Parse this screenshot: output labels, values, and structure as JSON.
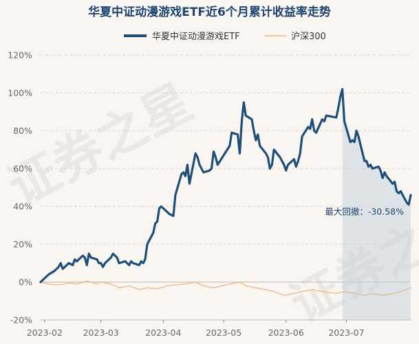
{
  "chart_data": {
    "type": "line",
    "title": "华夏中证动漫游戏ETF近6个月累计收益率走势",
    "xlabel": "",
    "ylabel": "",
    "ylim": [
      -20,
      120
    ],
    "yticks": [
      "120%",
      "100%",
      "80%",
      "60%",
      "40%",
      "20%",
      "0%",
      "-20%"
    ],
    "yticks_values": [
      120,
      100,
      80,
      60,
      40,
      20,
      0,
      -20
    ],
    "x_range": [
      "2023-01-30",
      "2023-07-31"
    ],
    "xticks": [
      {
        "label": "2023-02",
        "date": "2023-02-01"
      },
      {
        "label": "2023-03",
        "date": "2023-03-01"
      },
      {
        "label": "2023-04",
        "date": "2023-04-01"
      },
      {
        "label": "2023-05",
        "date": "2023-05-01"
      },
      {
        "label": "2023-06",
        "date": "2023-06-01"
      },
      {
        "label": "2023-07",
        "date": "2023-07-01"
      }
    ],
    "grid": true,
    "legend_position": "top-center",
    "series": [
      {
        "name": "华夏中证动漫游戏ETF",
        "color": "#1f4e79",
        "points": [
          [
            "2023-01-30",
            0
          ],
          [
            "2023-02-01",
            2
          ],
          [
            "2023-02-03",
            4
          ],
          [
            "2023-02-06",
            6
          ],
          [
            "2023-02-08",
            8
          ],
          [
            "2023-02-09",
            10
          ],
          [
            "2023-02-10",
            7
          ],
          [
            "2023-02-13",
            10
          ],
          [
            "2023-02-15",
            9
          ],
          [
            "2023-02-16",
            12
          ],
          [
            "2023-02-17",
            11
          ],
          [
            "2023-02-20",
            14
          ],
          [
            "2023-02-21",
            13
          ],
          [
            "2023-02-22",
            9
          ],
          [
            "2023-02-23",
            15
          ],
          [
            "2023-02-24",
            13
          ],
          [
            "2023-02-27",
            12
          ],
          [
            "2023-02-28",
            10
          ],
          [
            "2023-03-01",
            10
          ],
          [
            "2023-03-02",
            8
          ],
          [
            "2023-03-03",
            10
          ],
          [
            "2023-03-06",
            13
          ],
          [
            "2023-03-07",
            15
          ],
          [
            "2023-03-08",
            14
          ],
          [
            "2023-03-09",
            13
          ],
          [
            "2023-03-10",
            10
          ],
          [
            "2023-03-13",
            11
          ],
          [
            "2023-03-14",
            10
          ],
          [
            "2023-03-15",
            9
          ],
          [
            "2023-03-16",
            11
          ],
          [
            "2023-03-17",
            10
          ],
          [
            "2023-03-20",
            9
          ],
          [
            "2023-03-21",
            11
          ],
          [
            "2023-03-22",
            10
          ],
          [
            "2023-03-23",
            12
          ],
          [
            "2023-03-24",
            20
          ],
          [
            "2023-03-27",
            26
          ],
          [
            "2023-03-28",
            31
          ],
          [
            "2023-03-29",
            32
          ],
          [
            "2023-03-30",
            39
          ],
          [
            "2023-03-31",
            40
          ],
          [
            "2023-04-03",
            37
          ],
          [
            "2023-04-04",
            36
          ],
          [
            "2023-04-06",
            35
          ],
          [
            "2023-04-07",
            46
          ],
          [
            "2023-04-10",
            57
          ],
          [
            "2023-04-11",
            58
          ],
          [
            "2023-04-12",
            56
          ],
          [
            "2023-04-13",
            62
          ],
          [
            "2023-04-14",
            52
          ],
          [
            "2023-04-17",
            68
          ],
          [
            "2023-04-18",
            66
          ],
          [
            "2023-04-19",
            62
          ],
          [
            "2023-04-20",
            60
          ],
          [
            "2023-04-21",
            58
          ],
          [
            "2023-04-24",
            59
          ],
          [
            "2023-04-25",
            60
          ],
          [
            "2023-04-26",
            69
          ],
          [
            "2023-04-27",
            66
          ],
          [
            "2023-04-28",
            62
          ],
          [
            "2023-05-04",
            72
          ],
          [
            "2023-05-05",
            79
          ],
          [
            "2023-05-08",
            78
          ],
          [
            "2023-05-09",
            68
          ],
          [
            "2023-05-10",
            85
          ],
          [
            "2023-05-11",
            95
          ],
          [
            "2023-05-12",
            88
          ],
          [
            "2023-05-15",
            86
          ],
          [
            "2023-05-16",
            80
          ],
          [
            "2023-05-17",
            75
          ],
          [
            "2023-05-18",
            78
          ],
          [
            "2023-05-19",
            72
          ],
          [
            "2023-05-22",
            68
          ],
          [
            "2023-05-23",
            66
          ],
          [
            "2023-05-24",
            60
          ],
          [
            "2023-05-25",
            62
          ],
          [
            "2023-05-26",
            70
          ],
          [
            "2023-05-29",
            66
          ],
          [
            "2023-05-30",
            64
          ],
          [
            "2023-05-31",
            62
          ],
          [
            "2023-06-01",
            59
          ],
          [
            "2023-06-02",
            62
          ],
          [
            "2023-06-05",
            65
          ],
          [
            "2023-06-06",
            61
          ],
          [
            "2023-06-07",
            64
          ],
          [
            "2023-06-08",
            68
          ],
          [
            "2023-06-09",
            77
          ],
          [
            "2023-06-12",
            82
          ],
          [
            "2023-06-13",
            81
          ],
          [
            "2023-06-14",
            86
          ],
          [
            "2023-06-15",
            80
          ],
          [
            "2023-06-16",
            79
          ],
          [
            "2023-06-19",
            86
          ],
          [
            "2023-06-20",
            85
          ],
          [
            "2023-06-21",
            88
          ],
          [
            "2023-06-26",
            87
          ],
          [
            "2023-06-27",
            92
          ],
          [
            "2023-06-28",
            98
          ],
          [
            "2023-06-29",
            102
          ],
          [
            "2023-06-30",
            85
          ],
          [
            "2023-07-03",
            74
          ],
          [
            "2023-07-04",
            75
          ],
          [
            "2023-07-05",
            74
          ],
          [
            "2023-07-06",
            80
          ],
          [
            "2023-07-07",
            77
          ],
          [
            "2023-07-10",
            64
          ],
          [
            "2023-07-11",
            64
          ],
          [
            "2023-07-12",
            61
          ],
          [
            "2023-07-13",
            62
          ],
          [
            "2023-07-14",
            60
          ],
          [
            "2023-07-17",
            61
          ],
          [
            "2023-07-18",
            59
          ],
          [
            "2023-07-19",
            55
          ],
          [
            "2023-07-20",
            58
          ],
          [
            "2023-07-21",
            56
          ],
          [
            "2023-07-24",
            52
          ],
          [
            "2023-07-25",
            53
          ],
          [
            "2023-07-26",
            48
          ],
          [
            "2023-07-27",
            47
          ],
          [
            "2023-07-28",
            48
          ],
          [
            "2023-07-31",
            42
          ],
          [
            "2023-08-01",
            41
          ],
          [
            "2023-08-02",
            46
          ]
        ]
      },
      {
        "name": "沪深300",
        "color": "#f0b584",
        "points": [
          [
            "2023-01-30",
            0
          ],
          [
            "2023-02-03",
            -1
          ],
          [
            "2023-02-08",
            -1.5
          ],
          [
            "2023-02-13",
            -0.5
          ],
          [
            "2023-02-17",
            -1
          ],
          [
            "2023-02-22",
            0.5
          ],
          [
            "2023-02-27",
            -1
          ],
          [
            "2023-03-01",
            0
          ],
          [
            "2023-03-06",
            -1
          ],
          [
            "2023-03-10",
            -3
          ],
          [
            "2023-03-15",
            -2
          ],
          [
            "2023-03-20",
            -4
          ],
          [
            "2023-03-24",
            -3
          ],
          [
            "2023-03-29",
            -3.5
          ],
          [
            "2023-04-03",
            -2
          ],
          [
            "2023-04-07",
            -1.5
          ],
          [
            "2023-04-12",
            -1
          ],
          [
            "2023-04-17",
            0
          ],
          [
            "2023-04-21",
            -2
          ],
          [
            "2023-04-26",
            -3
          ],
          [
            "2023-05-04",
            -1
          ],
          [
            "2023-05-09",
            0
          ],
          [
            "2023-05-12",
            -2
          ],
          [
            "2023-05-17",
            -3
          ],
          [
            "2023-05-22",
            -4
          ],
          [
            "2023-05-26",
            -5
          ],
          [
            "2023-05-31",
            -7
          ],
          [
            "2023-06-05",
            -6
          ],
          [
            "2023-06-09",
            -5
          ],
          [
            "2023-06-14",
            -4
          ],
          [
            "2023-06-19",
            -5
          ],
          [
            "2023-06-26",
            -6
          ],
          [
            "2023-06-30",
            -5
          ],
          [
            "2023-07-05",
            -6
          ],
          [
            "2023-07-10",
            -7
          ],
          [
            "2023-07-14",
            -6
          ],
          [
            "2023-07-19",
            -7
          ],
          [
            "2023-07-24",
            -6
          ],
          [
            "2023-07-28",
            -5
          ],
          [
            "2023-08-02",
            -3
          ]
        ]
      }
    ],
    "drawdown": {
      "label": "最大回撤：-30.58%",
      "start": "2023-06-29",
      "end": "2023-08-02"
    }
  },
  "watermark": {
    "text_left": "证券之星",
    "text_right": "证券之星"
  }
}
